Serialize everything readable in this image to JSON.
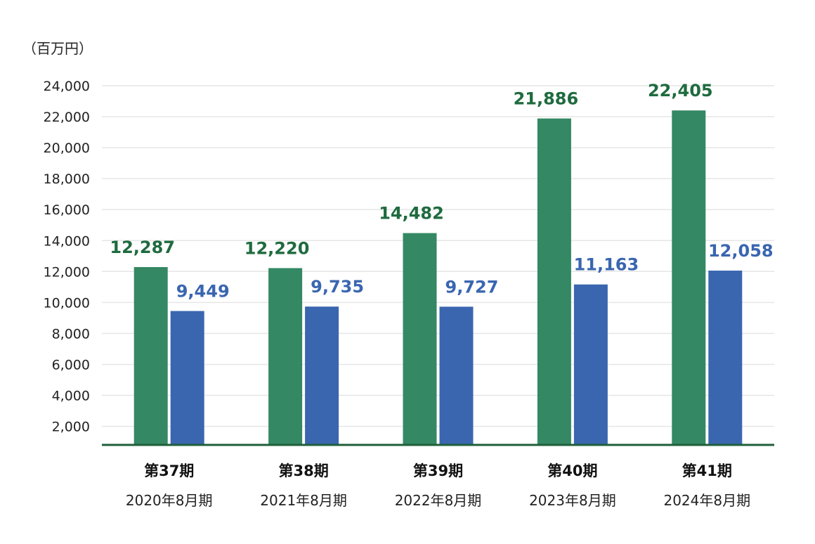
{
  "chart_data": {
    "type": "bar",
    "unit_label": "（百万円）",
    "categories": [
      {
        "period": "第37期",
        "date": "2020年8月期"
      },
      {
        "period": "第38期",
        "date": "2021年8月期"
      },
      {
        "period": "第39期",
        "date": "2022年8月期"
      },
      {
        "period": "第40期",
        "date": "2023年8月期"
      },
      {
        "period": "第41期",
        "date": "2024年8月期"
      }
    ],
    "series": [
      {
        "color": "#348863",
        "label_color": "#1f6b3f",
        "values": [
          12287,
          12220,
          14482,
          21886,
          22405
        ],
        "labels": [
          "12,287",
          "12,220",
          "14,482",
          "21,886",
          "22,405"
        ]
      },
      {
        "color": "#3a66b0",
        "label_color": "#3a66b0",
        "values": [
          9449,
          9735,
          9727,
          11163,
          12058
        ],
        "labels": [
          "9,449",
          "9,735",
          "9,727",
          "11,163",
          "12,058"
        ]
      }
    ],
    "ylim": [
      800,
      24000
    ],
    "yticks": [
      2000,
      4000,
      6000,
      8000,
      10000,
      12000,
      14000,
      16000,
      18000,
      20000,
      22000,
      24000
    ],
    "ytick_labels": [
      "2,000",
      "4,000",
      "6,000",
      "8,000",
      "10,000",
      "12,000",
      "14,000",
      "16,000",
      "18,000",
      "20,000",
      "22,000",
      "24,000"
    ],
    "grid": true,
    "legend": "none"
  }
}
